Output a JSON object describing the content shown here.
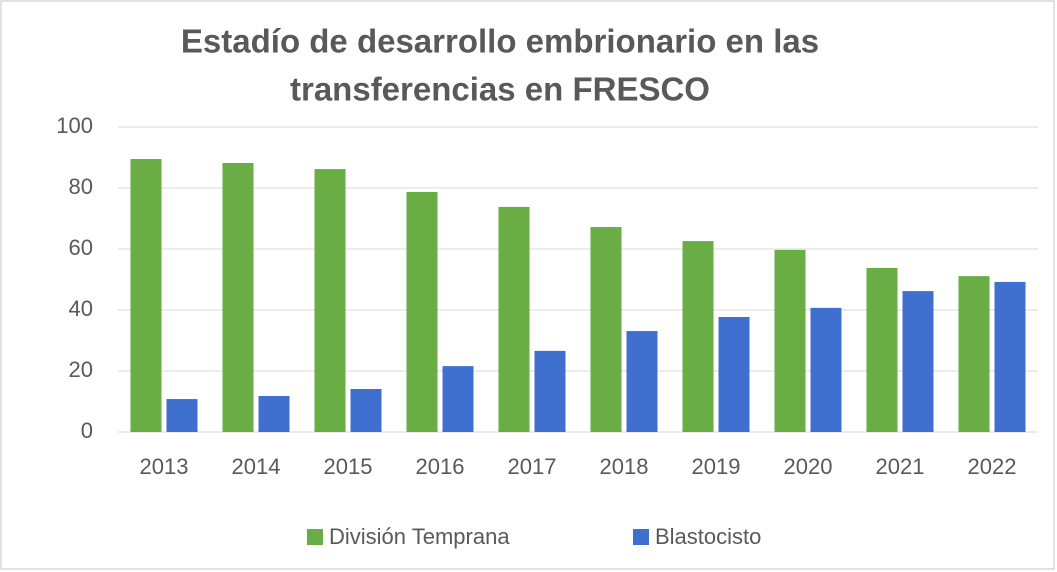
{
  "chart_data": {
    "type": "bar",
    "title": [
      "Estadío de desarrollo embrionario en las",
      "transferencias en FRESCO"
    ],
    "categories": [
      "2013",
      "2014",
      "2015",
      "2016",
      "2017",
      "2018",
      "2019",
      "2020",
      "2021",
      "2022"
    ],
    "series": [
      {
        "name": "División Temprana",
        "color": "#6aad45",
        "values": [
          89.5,
          88.2,
          86.2,
          78.7,
          73.8,
          67.2,
          62.6,
          59.7,
          53.8,
          51.1
        ]
      },
      {
        "name": "Blastocisto",
        "color": "#3f6fcf",
        "values": [
          10.8,
          11.8,
          14.1,
          21.6,
          26.6,
          33.1,
          37.7,
          40.7,
          46.2,
          49.2
        ]
      }
    ],
    "ylim": [
      0,
      100
    ],
    "yticks": [
      0,
      20,
      40,
      60,
      80,
      100
    ],
    "grid": true,
    "legend": "bottom"
  }
}
